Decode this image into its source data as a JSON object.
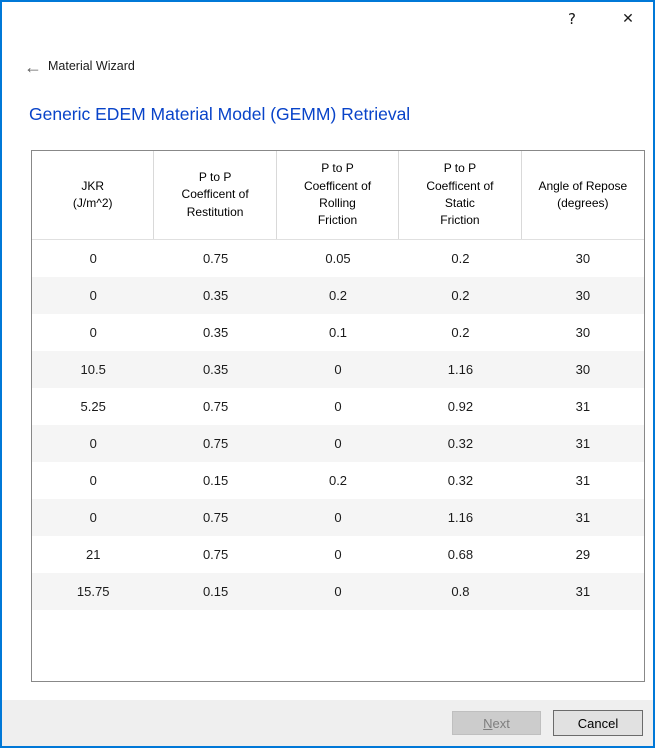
{
  "window": {
    "help_icon": "?",
    "close_icon": "✕"
  },
  "nav": {
    "back_icon": "←",
    "title": "Material Wizard"
  },
  "main": {
    "heading": "Generic EDEM Material Model (GEMM) Retrieval"
  },
  "table": {
    "headers": [
      [
        "JKR",
        "(J/m^2)"
      ],
      [
        "P to P",
        "Coefficent of",
        "Restitution"
      ],
      [
        "P to P",
        "Coefficent of",
        "Rolling",
        "Friction"
      ],
      [
        "P to P",
        "Coefficent of",
        "Static",
        "Friction"
      ],
      [
        "Angle of Repose",
        "(degrees)"
      ]
    ],
    "rows": [
      [
        "0",
        "0.75",
        "0.05",
        "0.2",
        "30"
      ],
      [
        "0",
        "0.35",
        "0.2",
        "0.2",
        "30"
      ],
      [
        "0",
        "0.35",
        "0.1",
        "0.2",
        "30"
      ],
      [
        "10.5",
        "0.35",
        "0",
        "1.16",
        "30"
      ],
      [
        "5.25",
        "0.75",
        "0",
        "0.92",
        "31"
      ],
      [
        "0",
        "0.75",
        "0",
        "0.32",
        "31"
      ],
      [
        "0",
        "0.15",
        "0.2",
        "0.32",
        "31"
      ],
      [
        "0",
        "0.75",
        "0",
        "1.16",
        "31"
      ],
      [
        "21",
        "0.75",
        "0",
        "0.68",
        "29"
      ],
      [
        "15.75",
        "0.15",
        "0",
        "0.8",
        "31"
      ]
    ]
  },
  "footer": {
    "next_accesskey": "N",
    "next_rest": "ext",
    "cancel_label": "Cancel"
  },
  "colors": {
    "accent_border": "#0078d7",
    "heading_blue": "#0843c9",
    "alt_row": "#f5f5f5",
    "footer_bg": "#efefef",
    "table_border": "#888888"
  }
}
